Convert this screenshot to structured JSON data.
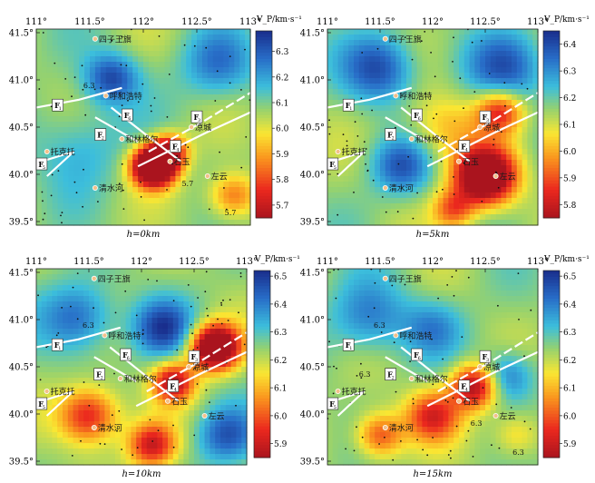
{
  "chart_data": [
    {
      "type": "heatmap",
      "depth_label": "h=0km",
      "colorbar_label": "V_P/km·s⁻¹",
      "colorbar_ticks": [
        "6.3",
        "6.2",
        "6.1",
        "6.0",
        "5.9",
        "5.8",
        "5.7"
      ],
      "vrange": [
        5.65,
        6.38
      ],
      "x_ticks": [
        "111°",
        "111.5°",
        "112°",
        "112.5°",
        "113°"
      ],
      "y_ticks": [
        "41.5°",
        "41.0°",
        "40.5°",
        "40.0°",
        "39.5°"
      ],
      "xlim": [
        111,
        113
      ],
      "ylim": [
        39.5,
        41.5
      ],
      "contour_labels": [
        "6.3",
        "5.7",
        "5.7"
      ],
      "faults": [
        "F1",
        "F2",
        "F3",
        "F4",
        "F5",
        "F6"
      ],
      "cities": [
        "四子王旗",
        "呼和浩特",
        "和林格尔",
        "凉城",
        "托克托",
        "石玉",
        "清水河",
        "左云"
      ]
    },
    {
      "type": "heatmap",
      "depth_label": "h=5km",
      "colorbar_label": "V_P/km·s⁻¹",
      "colorbar_ticks": [
        "6.4",
        "6.3",
        "6.2",
        "6.1",
        "6.0",
        "5.9",
        "5.8"
      ],
      "vrange": [
        5.75,
        6.45
      ],
      "x_ticks": [
        "111°",
        "111.5°",
        "112°",
        "112.5°",
        "113°"
      ],
      "y_ticks": [
        "41.5°",
        "41.0°",
        "40.5°",
        "40.0°",
        "39.5°"
      ],
      "xlim": [
        111,
        113
      ],
      "ylim": [
        39.5,
        41.5
      ],
      "faults": [
        "F1",
        "F2",
        "F3",
        "F4",
        "F5",
        "F6"
      ],
      "cities": [
        "四子王旗",
        "呼和浩特",
        "和林格尔",
        "凉城",
        "托克托",
        "石玉",
        "清水河",
        "左云"
      ]
    },
    {
      "type": "heatmap",
      "depth_label": "h=10km",
      "colorbar_label": "V_P/km·s⁻¹",
      "colorbar_ticks": [
        "6.5",
        "6.4",
        "6.3",
        "6.2",
        "6.1",
        "6.0",
        "5.9"
      ],
      "vrange": [
        5.85,
        6.52
      ],
      "x_ticks": [
        "111°",
        "111.5°",
        "112°",
        "112.5°",
        "113°"
      ],
      "y_ticks": [
        "41.5°",
        "41.0°",
        "40.5°",
        "40.0°",
        "39.5°"
      ],
      "xlim": [
        111,
        113
      ],
      "ylim": [
        39.5,
        41.5
      ],
      "contour_labels": [
        "6.3"
      ],
      "faults": [
        "F1",
        "F2",
        "F3",
        "F4",
        "F5",
        "F6"
      ],
      "cities": [
        "四子王旗",
        "呼和浩特",
        "和林格尔",
        "凉城",
        "托克托",
        "石玉",
        "清水河",
        "左云"
      ]
    },
    {
      "type": "heatmap",
      "depth_label": "h=15km",
      "colorbar_label": "V_P/km·s⁻¹",
      "colorbar_ticks": [
        "6.5",
        "6.4",
        "6.3",
        "6.2",
        "6.1",
        "6.0",
        "5.9"
      ],
      "vrange": [
        5.85,
        6.52
      ],
      "x_ticks": [
        "111°",
        "111.5°",
        "112°",
        "112.5°",
        "113°"
      ],
      "y_ticks": [
        "41.5°",
        "41.0°",
        "40.5°",
        "40.0°",
        "39.5°"
      ],
      "xlim": [
        111,
        113
      ],
      "ylim": [
        39.5,
        41.5
      ],
      "contour_labels": [
        "6.3",
        "6.3",
        "6.3",
        "6.3"
      ],
      "faults": [
        "F1",
        "F2",
        "F3",
        "F4",
        "F5",
        "F6"
      ],
      "cities": [
        "四子王旗",
        "呼和浩特",
        "和林格尔",
        "凉城",
        "托克托",
        "石玉",
        "清水河",
        "左云"
      ]
    }
  ]
}
